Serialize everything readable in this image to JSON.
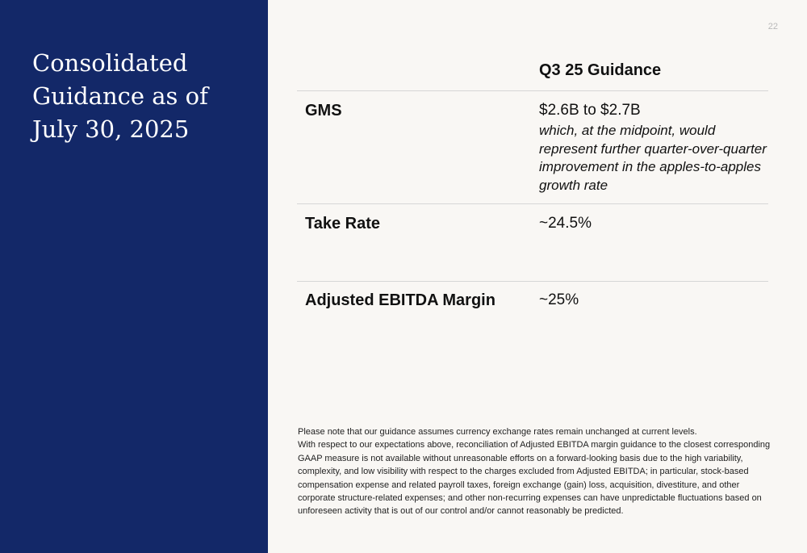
{
  "sidebar": {
    "title": "Consolidated Guidance as of July 30, 2025"
  },
  "page_number": "22",
  "table": {
    "column_header": "Q3 25 Guidance",
    "rows": [
      {
        "label": "GMS",
        "value": "$2.6B to $2.7B",
        "note": "which, at the midpoint, would represent further quarter-over-quarter improvement in the apples-to-apples growth rate"
      },
      {
        "label": "Take Rate",
        "value": "~24.5%"
      },
      {
        "label": "Adjusted EBITDA Margin",
        "value": "~25%"
      }
    ]
  },
  "footnote": {
    "line1": "Please note that our guidance assumes currency exchange rates remain unchanged at current levels.",
    "line2": "With respect to our expectations above, reconciliation of Adjusted EBITDA margin guidance to the closest corresponding GAAP measure is not available without unreasonable efforts on a forward-looking basis due to the high variability, complexity, and low visibility with respect to the charges excluded from Adjusted EBITDA; in particular, stock-based compensation expense and related payroll taxes, foreign exchange (gain) loss, acquisition, divestiture, and other corporate structure-related expenses; and other non-recurring expenses can have unpredictable fluctuations based on unforeseen activity that is out of our control and/or cannot reasonably be predicted."
  }
}
